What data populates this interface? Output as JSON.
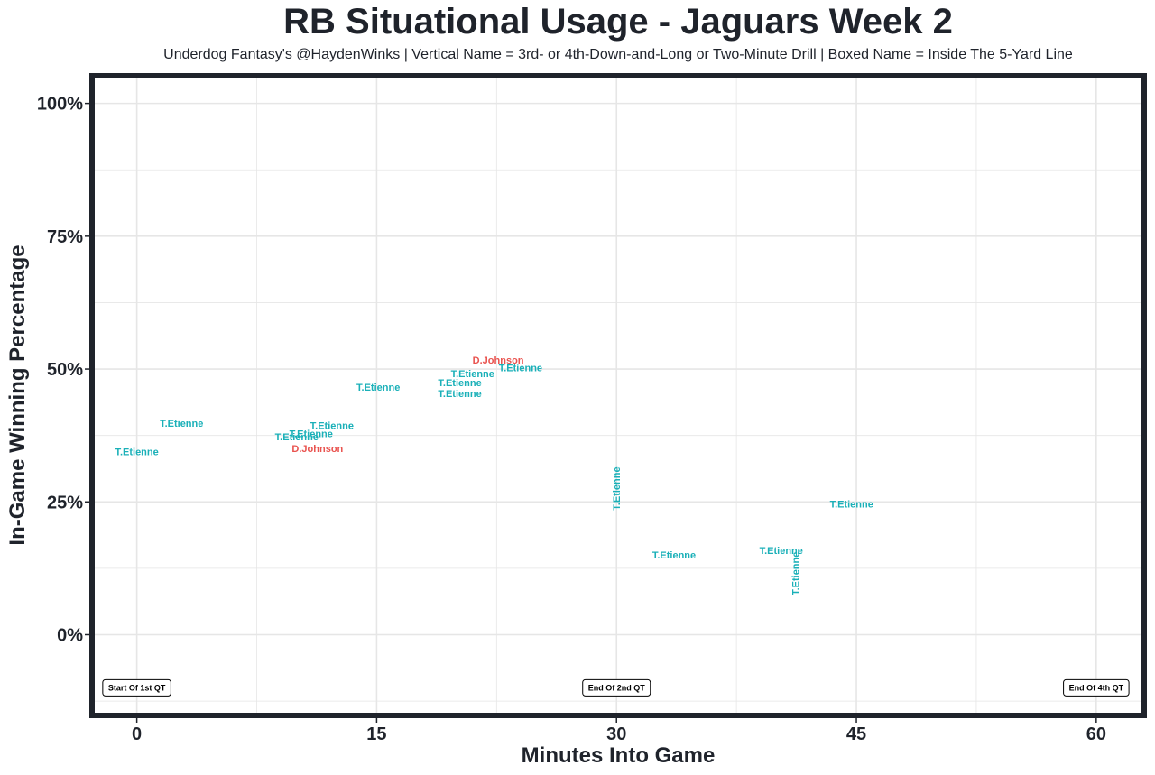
{
  "chart_data": {
    "type": "scatter",
    "title": "RB Situational Usage - Jaguars Week 2",
    "subtitle": "Underdog Fantasy's @HaydenWinks | Vertical Name = 3rd- or 4th-Down-and-Long or Two-Minute Drill | Boxed Name = Inside The 5-Yard Line",
    "xlabel": "Minutes Into Game",
    "ylabel": "In-Game Winning Percentage",
    "xlim": [
      -2.8,
      63.0
    ],
    "ylim": [
      -15.2,
      105.2
    ],
    "x_ticks": [
      0,
      15,
      30,
      45,
      60
    ],
    "x_tick_labels": [
      "0",
      "15",
      "30",
      "45",
      "60"
    ],
    "y_ticks": [
      0,
      25,
      50,
      75,
      100
    ],
    "y_tick_labels": [
      "0%",
      "25%",
      "50%",
      "75%",
      "100%"
    ],
    "grid": true,
    "series": [
      {
        "name": "T.Etienne",
        "color": "#1ab0b8",
        "points": [
          {
            "x": 0.0,
            "y": 34.5,
            "label": "T.Etienne"
          },
          {
            "x": 2.8,
            "y": 39.8,
            "label": "T.Etienne"
          },
          {
            "x": 10.0,
            "y": 37.3,
            "label": "T.Etienne"
          },
          {
            "x": 10.9,
            "y": 37.9,
            "label": "T.Etienne"
          },
          {
            "x": 12.2,
            "y": 39.4,
            "label": "T.Etienne"
          },
          {
            "x": 15.1,
            "y": 46.6,
            "label": "T.Etienne"
          },
          {
            "x": 20.2,
            "y": 45.4,
            "label": "T.Etienne"
          },
          {
            "x": 20.2,
            "y": 47.5,
            "label": "T.Etienne"
          },
          {
            "x": 21.0,
            "y": 49.2,
            "label": "T.Etienne"
          },
          {
            "x": 24.0,
            "y": 50.3,
            "label": "T.Etienne"
          },
          {
            "x": 30.0,
            "y": 27.5,
            "label": "T.Etienne",
            "vertical": true
          },
          {
            "x": 33.6,
            "y": 15.0,
            "label": "T.Etienne"
          },
          {
            "x": 40.3,
            "y": 15.9,
            "label": "T.Etienne"
          },
          {
            "x": 41.2,
            "y": 11.5,
            "label": "T.Etienne",
            "vertical": true
          },
          {
            "x": 44.7,
            "y": 24.6,
            "label": "T.Etienne"
          }
        ]
      },
      {
        "name": "D.Johnson",
        "color": "#e9534f",
        "points": [
          {
            "x": 11.3,
            "y": 35.1,
            "label": "D.Johnson"
          },
          {
            "x": 22.6,
            "y": 51.7,
            "label": "D.Johnson"
          }
        ]
      }
    ],
    "annotations": [
      {
        "x": 0,
        "y": -10,
        "text": "Start Of 1st QT"
      },
      {
        "x": 30,
        "y": -10,
        "text": "End Of 2nd QT"
      },
      {
        "x": 60,
        "y": -10,
        "text": "End Of 4th QT"
      }
    ],
    "colors": {
      "panel_border": "#1f232b",
      "grid": "#e6e6e6",
      "text": "#1f232b"
    }
  }
}
